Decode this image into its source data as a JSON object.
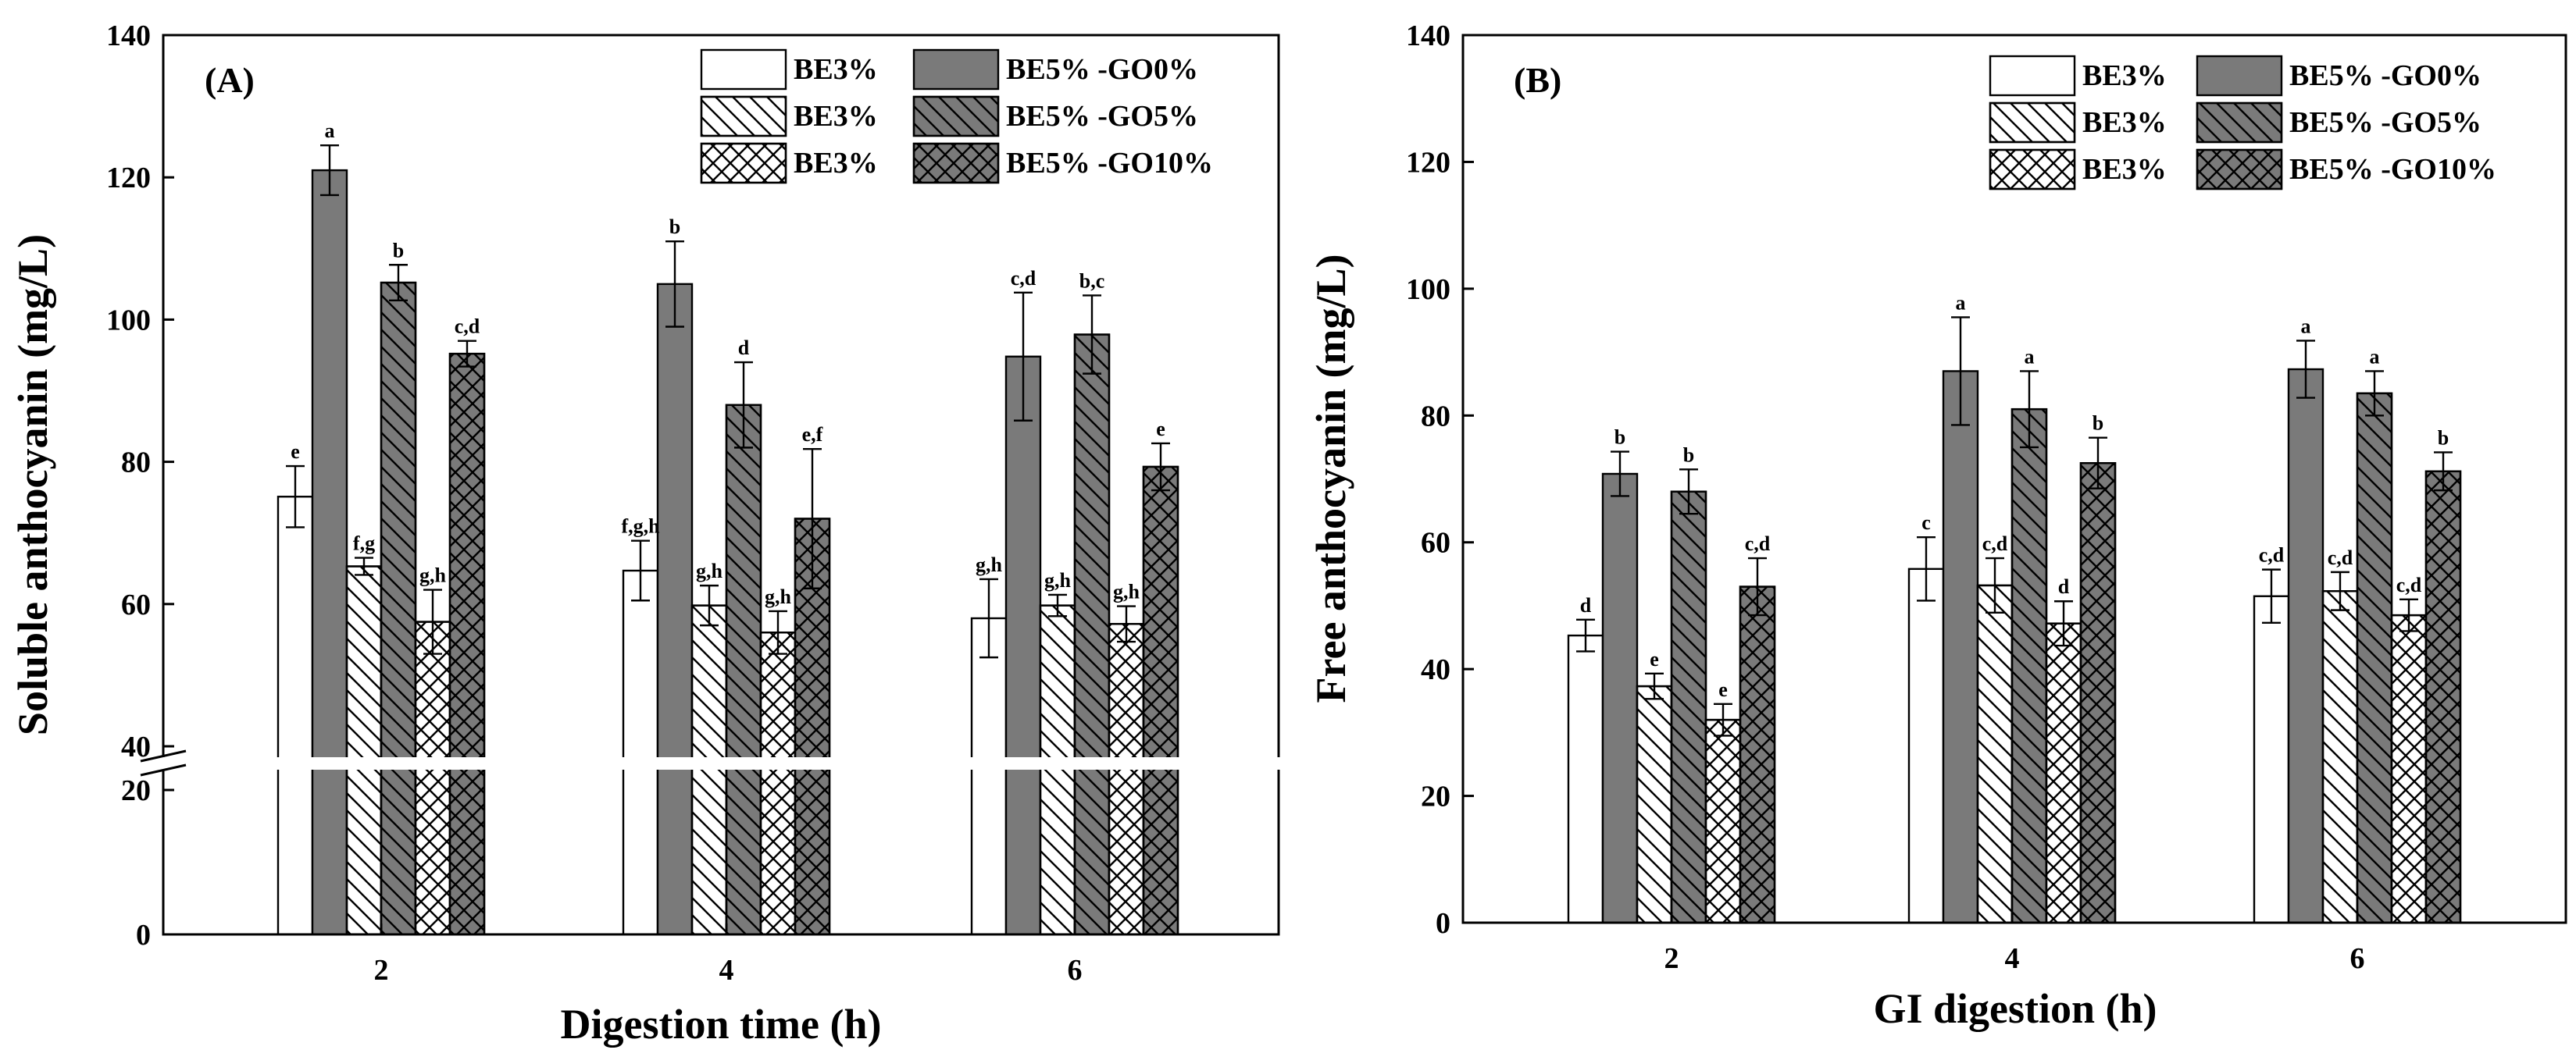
{
  "chart_data": [
    {
      "type": "bar",
      "panel_label": "(A)",
      "title": "",
      "xlabel": "Digestion time (h)",
      "ylabel": "Soluble anthocyanin (mg/L)",
      "categories": [
        "2",
        "4",
        "6"
      ],
      "ylim": [
        0,
        140
      ],
      "axis_break": [
        20,
        40
      ],
      "yticks": [
        "0",
        "20",
        "40",
        "60",
        "80",
        "100",
        "120",
        "140"
      ],
      "series": [
        {
          "name": "BE3%",
          "pattern": "none",
          "fill": "#ffffff",
          "values": [
            75.1,
            64.7,
            58.0
          ],
          "errors": [
            4.3,
            4.2,
            5.5
          ],
          "labels": [
            "e",
            "f,g,h",
            "g,h"
          ]
        },
        {
          "name": "BE5% -GO0%",
          "pattern": "none",
          "fill": "#7a7a7a",
          "values": [
            121.0,
            105.0,
            94.8
          ],
          "errors": [
            3.5,
            6.0,
            9.0
          ],
          "labels": [
            "a",
            "b",
            "c,d"
          ]
        },
        {
          "name": "BE3%",
          "pattern": "diag",
          "fill": "#ffffff",
          "values": [
            65.3,
            59.8,
            59.8
          ],
          "errors": [
            1.2,
            2.8,
            1.5
          ],
          "labels": [
            "f,g",
            "g,h",
            "g,h"
          ]
        },
        {
          "name": "BE5% -GO5%",
          "pattern": "diag",
          "fill": "#7a7a7a",
          "values": [
            105.2,
            88.0,
            97.9
          ],
          "errors": [
            2.5,
            6.0,
            5.5
          ],
          "labels": [
            "b",
            "d",
            "b,c"
          ]
        },
        {
          "name": "BE3%",
          "pattern": "cross",
          "fill": "#ffffff",
          "values": [
            57.5,
            56.0,
            57.2
          ],
          "errors": [
            4.5,
            3.0,
            2.5
          ],
          "labels": [
            "g,h",
            "g,h",
            "g,h"
          ]
        },
        {
          "name": "BE5% -GO10%",
          "pattern": "cross",
          "fill": "#7a7a7a",
          "values": [
            95.2,
            72.0,
            79.3
          ],
          "errors": [
            1.8,
            9.8,
            3.3
          ],
          "labels": [
            "c,d",
            "e,f",
            "e"
          ]
        }
      ]
    },
    {
      "type": "bar",
      "panel_label": "(B)",
      "title": "",
      "xlabel": "GI digestion (h)",
      "ylabel": "Free anthocyanin (mg/L)",
      "categories": [
        "2",
        "4",
        "6"
      ],
      "ylim": [
        0,
        140
      ],
      "yticks": [
        "0",
        "20",
        "40",
        "60",
        "80",
        "100",
        "120",
        "140"
      ],
      "series": [
        {
          "name": "BE3%",
          "pattern": "none",
          "fill": "#ffffff",
          "values": [
            45.3,
            55.8,
            51.5
          ],
          "errors": [
            2.5,
            5.0,
            4.2
          ],
          "labels": [
            "d",
            "c",
            "c,d"
          ]
        },
        {
          "name": "BE5% -GO0%",
          "pattern": "none",
          "fill": "#7a7a7a",
          "values": [
            70.8,
            87.0,
            87.3
          ],
          "errors": [
            3.5,
            8.5,
            4.5
          ],
          "labels": [
            "b",
            "a",
            "a"
          ]
        },
        {
          "name": "BE3%",
          "pattern": "diag",
          "fill": "#ffffff",
          "values": [
            37.3,
            53.2,
            52.3
          ],
          "errors": [
            2.0,
            4.3,
            3.0
          ],
          "labels": [
            "e",
            "c,d",
            "c,d"
          ]
        },
        {
          "name": "BE5% -GO5%",
          "pattern": "diag",
          "fill": "#7a7a7a",
          "values": [
            68.0,
            81.0,
            83.5
          ],
          "errors": [
            3.5,
            6.0,
            3.5
          ],
          "labels": [
            "b",
            "a",
            "a"
          ]
        },
        {
          "name": "BE3%",
          "pattern": "cross",
          "fill": "#ffffff",
          "values": [
            32.0,
            47.2,
            48.5
          ],
          "errors": [
            2.5,
            3.5,
            2.5
          ],
          "labels": [
            "e",
            "d",
            "c,d"
          ]
        },
        {
          "name": "BE5% -GO10%",
          "pattern": "cross",
          "fill": "#7a7a7a",
          "values": [
            53.0,
            72.5,
            71.2
          ],
          "errors": [
            4.5,
            4.0,
            3.0
          ],
          "labels": [
            "c,d",
            "b",
            "b"
          ]
        }
      ]
    }
  ]
}
